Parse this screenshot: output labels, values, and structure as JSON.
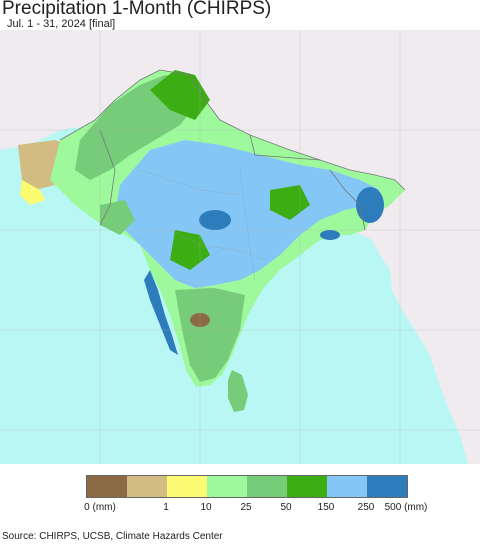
{
  "title": "Precipitation 1-Month (CHIRPS)",
  "subtitle": "Jul. 1 - 31, 2024 [final]",
  "map": {
    "ocean_color": "#b9f7f5",
    "outside_land_color": "#efebef",
    "region": "South Asia"
  },
  "legend": {
    "colors": [
      "#8b6a45",
      "#d2bc82",
      "#fdfb72",
      "#9ef89c",
      "#76cc78",
      "#3cae14",
      "#84c7f7",
      "#2d7dbd"
    ],
    "labels": [
      "0 (mm)",
      "1",
      "10",
      "25",
      "50",
      "150",
      "250",
      "500 (mm)"
    ]
  },
  "source": "Source: CHIRPS, UCSB, Climate Hazards Center"
}
